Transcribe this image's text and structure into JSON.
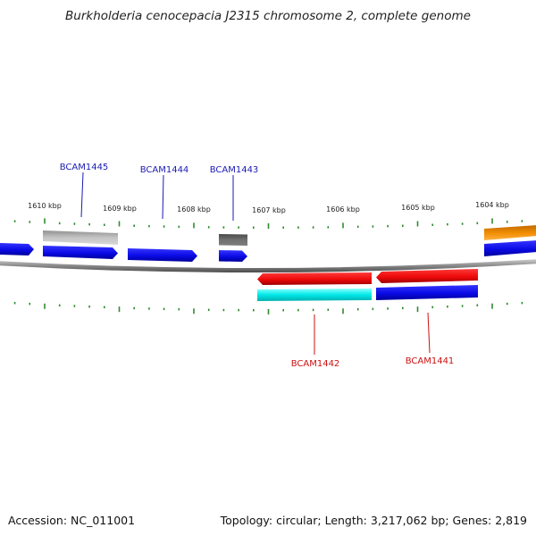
{
  "title": "Burkholderia cenocepacia J2315 chromosome 2, complete genome",
  "accession": "Accession: NC_011001",
  "info": "Topology: circular; Length: 3,217,062 bp; Genes: 2,819",
  "kbp_labels": [
    "1610 kbp",
    "1609 kbp",
    "1608 kbp",
    "1607 kbp",
    "1606 kbp",
    "1605 kbp",
    "1604 kbp"
  ],
  "gene_labels_top": [
    "BCAM1445",
    "BCAM1444",
    "BCAM1443"
  ],
  "gene_labels_bottom": [
    "BCAM1442",
    "BCAM1441"
  ],
  "colors": {
    "label_top": "#1a1ab5",
    "label_bottom": "#cc1111",
    "tick": "#2e8b2e",
    "backbone": "#8a8a8a",
    "cds_blue": "#0a0ae6",
    "cds_red": "#ee0a0a",
    "cds_gray_light": "#b8b8b8",
    "cds_gray_dark": "#6a6a6a",
    "cds_orange": "#f08c00",
    "cds_cyan": "#00e8e8"
  }
}
